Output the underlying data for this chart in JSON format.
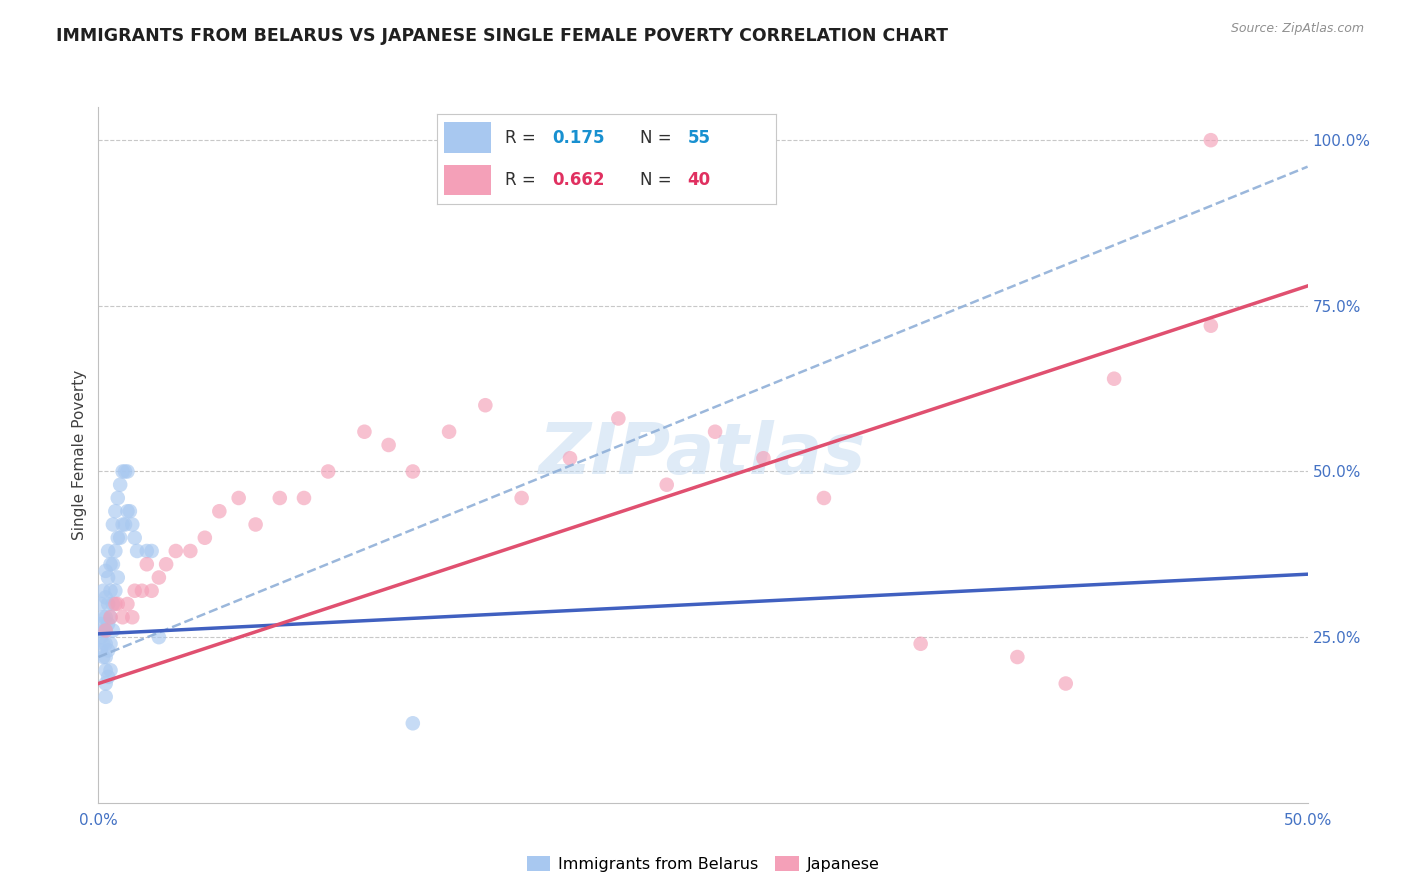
{
  "title": "IMMIGRANTS FROM BELARUS VS JAPANESE SINGLE FEMALE POVERTY CORRELATION CHART",
  "source": "Source: ZipAtlas.com",
  "ylabel": "Single Female Poverty",
  "xlim": [
    0.0,
    0.5
  ],
  "ylim": [
    0.0,
    1.05
  ],
  "ytick_values": [
    0.0,
    0.25,
    0.5,
    0.75,
    1.0
  ],
  "ytick_labels": [
    "",
    "25.0%",
    "50.0%",
    "75.0%",
    "100.0%"
  ],
  "xtick_values": [
    0.0,
    0.1,
    0.2,
    0.3,
    0.4,
    0.5
  ],
  "xtick_labels": [
    "0.0%",
    "",
    "",
    "",
    "",
    "50.0%"
  ],
  "legend_R1": "R = ",
  "legend_V1": "0.175",
  "legend_N1_label": "N = ",
  "legend_N1": "55",
  "legend_R2": "R = ",
  "legend_V2": "0.662",
  "legend_N2_label": "N = ",
  "legend_N2": "40",
  "color_blue": "#A8C8F0",
  "color_pink": "#F4A0B8",
  "color_blue_line": "#4060C0",
  "color_pink_line": "#E05070",
  "color_dashed": "#90B0D8",
  "watermark": "ZIPatlas",
  "blue_scatter_x": [
    0.001,
    0.001,
    0.001,
    0.001,
    0.002,
    0.002,
    0.002,
    0.002,
    0.002,
    0.003,
    0.003,
    0.003,
    0.003,
    0.003,
    0.003,
    0.003,
    0.003,
    0.003,
    0.004,
    0.004,
    0.004,
    0.004,
    0.004,
    0.004,
    0.005,
    0.005,
    0.005,
    0.005,
    0.005,
    0.006,
    0.006,
    0.006,
    0.006,
    0.007,
    0.007,
    0.007,
    0.008,
    0.008,
    0.008,
    0.009,
    0.009,
    0.01,
    0.01,
    0.011,
    0.011,
    0.012,
    0.012,
    0.013,
    0.014,
    0.015,
    0.016,
    0.02,
    0.022,
    0.13,
    0.025
  ],
  "blue_scatter_y": [
    0.3,
    0.27,
    0.25,
    0.23,
    0.32,
    0.28,
    0.26,
    0.24,
    0.22,
    0.35,
    0.31,
    0.28,
    0.26,
    0.24,
    0.22,
    0.2,
    0.18,
    0.16,
    0.38,
    0.34,
    0.3,
    0.27,
    0.23,
    0.19,
    0.36,
    0.32,
    0.28,
    0.24,
    0.2,
    0.42,
    0.36,
    0.3,
    0.26,
    0.44,
    0.38,
    0.32,
    0.46,
    0.4,
    0.34,
    0.48,
    0.4,
    0.5,
    0.42,
    0.5,
    0.42,
    0.5,
    0.44,
    0.44,
    0.42,
    0.4,
    0.38,
    0.38,
    0.38,
    0.12,
    0.25
  ],
  "pink_scatter_x": [
    0.003,
    0.005,
    0.007,
    0.008,
    0.01,
    0.012,
    0.014,
    0.015,
    0.018,
    0.02,
    0.022,
    0.025,
    0.028,
    0.032,
    0.038,
    0.044,
    0.05,
    0.058,
    0.065,
    0.075,
    0.085,
    0.095,
    0.11,
    0.12,
    0.13,
    0.145,
    0.16,
    0.175,
    0.195,
    0.215,
    0.235,
    0.255,
    0.275,
    0.3,
    0.34,
    0.38,
    0.4,
    0.42,
    0.46,
    0.46
  ],
  "pink_scatter_y": [
    0.26,
    0.28,
    0.3,
    0.3,
    0.28,
    0.3,
    0.28,
    0.32,
    0.32,
    0.36,
    0.32,
    0.34,
    0.36,
    0.38,
    0.38,
    0.4,
    0.44,
    0.46,
    0.42,
    0.46,
    0.46,
    0.5,
    0.56,
    0.54,
    0.5,
    0.56,
    0.6,
    0.46,
    0.52,
    0.58,
    0.48,
    0.56,
    0.52,
    0.46,
    0.24,
    0.22,
    0.18,
    0.64,
    0.72,
    1.0
  ],
  "blue_line_x0": 0.0,
  "blue_line_y0": 0.255,
  "blue_line_x1": 0.5,
  "blue_line_y1": 0.345,
  "pink_line_x0": 0.0,
  "pink_line_y0": 0.18,
  "pink_line_x1": 0.5,
  "pink_line_y1": 0.78,
  "dashed_line_x0": 0.0,
  "dashed_line_y0": 0.22,
  "dashed_line_x1": 0.5,
  "dashed_line_y1": 0.96
}
